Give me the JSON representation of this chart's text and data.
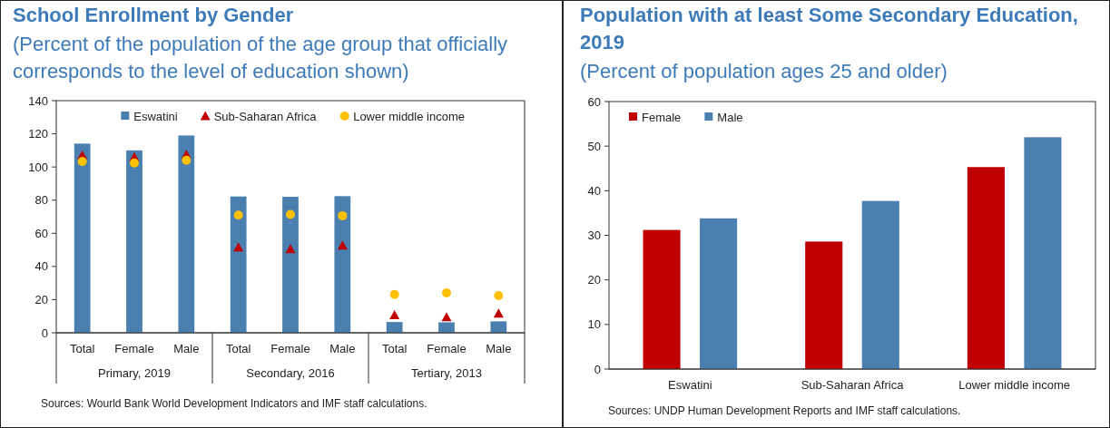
{
  "chart_data": [
    {
      "type": "bar",
      "title": "School Enrollment by Gender",
      "subtitle": "(Percent of the population of the age group that officially corresponds to the level of education shown)",
      "categories": [
        "Total",
        "Female",
        "Male",
        "Total",
        "Female",
        "Male",
        "Total",
        "Female",
        "Male"
      ],
      "series": [
        {
          "name": "Eswatini",
          "color": "#4a7fb0",
          "values": [
            114.1,
            110.0,
            119.0,
            82.2,
            82.0,
            82.4,
            6.5,
            6.3,
            6.9
          ]
        },
        {
          "name": "Sub-Saharan Africa",
          "type": "scatter",
          "marker": "triangle",
          "color": "#c00000",
          "values": [
            107,
            106,
            107.5,
            51.6,
            50.4,
            52.7,
            10.6,
            9.4,
            11.6
          ]
        },
        {
          "name": "Lower middle income",
          "type": "scatter",
          "marker": "circle",
          "color": "#ffc000",
          "values": [
            103.3,
            102.4,
            104.1,
            71.0,
            71.4,
            70.6,
            23.1,
            24.1,
            22.4
          ]
        }
      ],
      "ylim": [
        0,
        140
      ],
      "yticks": [
        0,
        20,
        40,
        60,
        80,
        100,
        120,
        140
      ],
      "grid": false,
      "legend": "top right",
      "annotations": [
        "Primary, 2019",
        "Secondary, 2016",
        "Tertiary, 2013",
        "Sources: Wourld Bank World Development Indicators and IMF staff calculations."
      ]
    },
    {
      "type": "bar",
      "title": "Population with at least Some Secondary Education, 2019",
      "subtitle": "(Percent of population ages 25 and older)",
      "categories": [
        "Eswatini",
        "Sub-Saharan Africa",
        "Lower middle income"
      ],
      "series": [
        {
          "name": "Female",
          "color": "#c00000",
          "values": [
            31.2,
            28.6,
            45.3
          ]
        },
        {
          "name": "Male",
          "color": "#4a7fb0",
          "values": [
            33.8,
            37.7,
            52.0
          ]
        }
      ],
      "ylim": [
        0,
        60
      ],
      "yticks": [
        0,
        10,
        20,
        30,
        40,
        50,
        60
      ],
      "grid": false,
      "legend": "top left",
      "annotations": [
        "Sources: UNDP Human Development Reports and IMF staff calculations."
      ]
    }
  ]
}
